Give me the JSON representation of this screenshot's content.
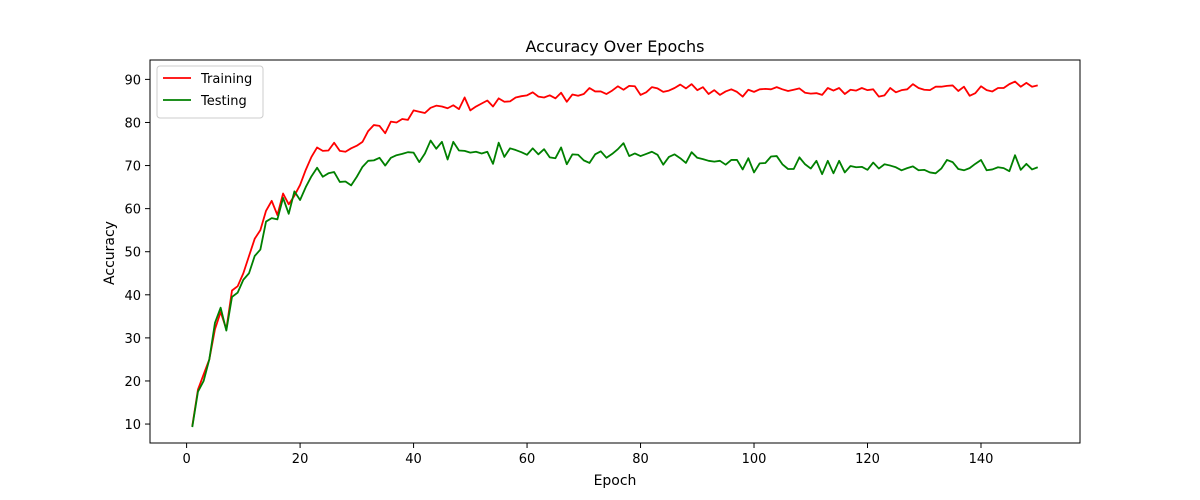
{
  "chart_data": {
    "type": "line",
    "title": "Accuracy Over Epochs",
    "xlabel": "Epoch",
    "ylabel": "Accuracy",
    "xlim": [
      -6.45,
      157.45
    ],
    "ylim": [
      5.6,
      94.5
    ],
    "xticks": [
      0,
      20,
      40,
      60,
      80,
      100,
      120,
      140
    ],
    "yticks": [
      10,
      20,
      30,
      40,
      50,
      60,
      70,
      80,
      90
    ],
    "grid": false,
    "legend_position": "top-left",
    "series": [
      {
        "name": "Training",
        "color": "#ff0000",
        "values": [
          9.5,
          18.0,
          21.5,
          25.0,
          32.0,
          36.0,
          32.0,
          41.0,
          42.0,
          45.0,
          49.0,
          53.0,
          55.0,
          59.5,
          61.8,
          58.5,
          63.5,
          61.0,
          63.0,
          65.5,
          69.0,
          72.0,
          74.2,
          73.4,
          73.5,
          75.3,
          73.4,
          73.2,
          74.0,
          74.6,
          75.5,
          78.0,
          79.4,
          79.2,
          77.5,
          80.2,
          80.0,
          80.8,
          80.6,
          82.8,
          82.5,
          82.2,
          83.4,
          83.9,
          83.7,
          83.3,
          84.0,
          83.1,
          85.8,
          82.8,
          83.7,
          84.4,
          85.1,
          83.7,
          85.6,
          84.8,
          84.9,
          85.8,
          86.1,
          86.3,
          87.0,
          86.0,
          85.8,
          86.3,
          85.6,
          86.9,
          84.8,
          86.5,
          86.2,
          86.6,
          88.0,
          87.2,
          87.2,
          86.6,
          87.4,
          88.4,
          87.6,
          88.5,
          88.4,
          86.4,
          87.0,
          88.2,
          87.9,
          87.1,
          87.4,
          88.0,
          88.8,
          87.9,
          88.9,
          87.5,
          88.2,
          86.6,
          87.5,
          86.4,
          87.2,
          87.7,
          87.1,
          86.0,
          87.6,
          87.1,
          87.7,
          87.8,
          87.7,
          88.2,
          87.7,
          87.3,
          87.6,
          87.9,
          86.9,
          86.7,
          86.8,
          86.4,
          88.0,
          87.4,
          88.0,
          86.6,
          87.6,
          87.4,
          88.0,
          87.5,
          87.7,
          86.0,
          86.3,
          88.0,
          87.0,
          87.5,
          87.7,
          88.9,
          88.0,
          87.6,
          87.5,
          88.3,
          88.3,
          88.5,
          88.6,
          87.3,
          88.3,
          86.2,
          86.8,
          88.4,
          87.5,
          87.2,
          88.0,
          88.0,
          88.9,
          89.5,
          88.3,
          89.2,
          88.3,
          88.6
        ]
      },
      {
        "name": "Testing",
        "color": "#008000",
        "values": [
          9.3,
          17.5,
          20.0,
          25.0,
          33.5,
          37.0,
          31.7,
          39.5,
          40.5,
          43.5,
          45.0,
          49.0,
          50.5,
          57.0,
          57.8,
          57.5,
          62.5,
          58.8,
          64.0,
          62.0,
          65.0,
          67.5,
          69.5,
          67.4,
          68.2,
          68.5,
          66.2,
          66.3,
          65.4,
          67.4,
          69.7,
          71.1,
          71.2,
          71.8,
          70.0,
          71.8,
          72.4,
          72.7,
          73.1,
          73.0,
          70.8,
          72.8,
          75.8,
          73.9,
          75.5,
          71.4,
          75.5,
          73.5,
          73.4,
          73.0,
          73.2,
          72.8,
          73.2,
          70.4,
          75.3,
          72.0,
          74.0,
          73.6,
          73.1,
          72.5,
          74.0,
          72.6,
          73.8,
          71.9,
          71.7,
          74.2,
          70.3,
          72.6,
          72.5,
          71.2,
          70.6,
          72.6,
          73.3,
          71.8,
          72.7,
          73.8,
          75.2,
          72.2,
          72.8,
          72.2,
          72.7,
          73.2,
          72.5,
          70.2,
          72.0,
          72.6,
          71.7,
          70.6,
          73.1,
          71.8,
          71.5,
          71.1,
          70.9,
          71.1,
          70.2,
          71.3,
          71.3,
          69.1,
          71.7,
          68.4,
          70.5,
          70.6,
          72.1,
          72.2,
          70.3,
          69.2,
          69.2,
          71.9,
          70.3,
          69.3,
          71.1,
          68.0,
          71.1,
          68.2,
          71.1,
          68.4,
          69.9,
          69.6,
          69.7,
          69.0,
          70.7,
          69.3,
          70.3,
          70.0,
          69.6,
          68.9,
          69.4,
          69.8,
          68.9,
          69.0,
          68.4,
          68.2,
          69.3,
          71.3,
          70.8,
          69.2,
          68.9,
          69.4,
          70.4,
          71.3,
          68.9,
          69.1,
          69.6,
          69.4,
          68.7,
          72.4,
          69.0,
          70.4,
          69.1,
          69.6
        ]
      }
    ]
  }
}
